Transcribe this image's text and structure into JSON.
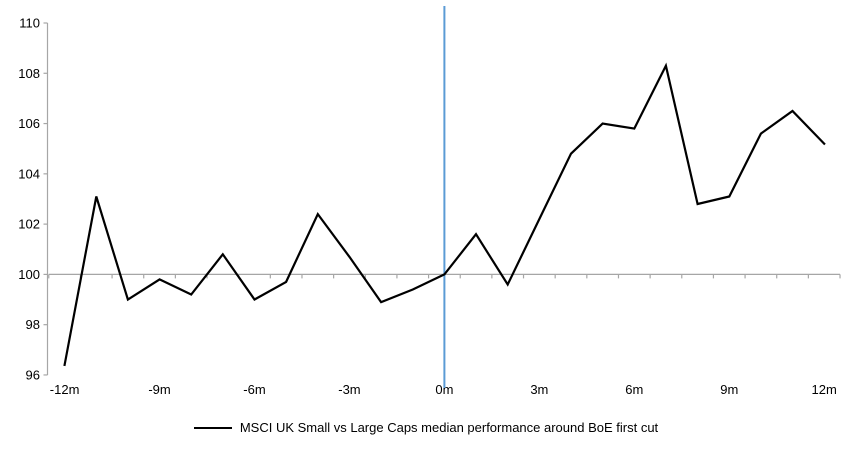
{
  "chart_data": {
    "type": "line",
    "title": "",
    "xlabel": "",
    "ylabel": "",
    "x_tick_labels": [
      "-12m",
      "-9m",
      "-6m",
      "-3m",
      "0m",
      "3m",
      "6m",
      "9m",
      "12m"
    ],
    "x_tick_values": [
      -12,
      -9,
      -6,
      -3,
      0,
      3,
      6,
      9,
      12
    ],
    "xlim": [
      -12.5,
      12.5
    ],
    "y_ticks": [
      96,
      98,
      100,
      102,
      104,
      106,
      108,
      110
    ],
    "ylim": [
      96,
      110
    ],
    "baseline_value": 100,
    "event_line_x": 0,
    "grid": "off",
    "legend_position": "bottom",
    "series": [
      {
        "name": "MSCI UK Small vs Large Caps median performance around BoE first cut",
        "x": [
          -12,
          -11,
          -10,
          -9,
          -8,
          -7,
          -6,
          -5,
          -4,
          -3,
          -2,
          -1,
          0,
          1,
          2,
          3,
          4,
          5,
          6,
          7,
          8,
          9,
          10,
          11,
          12
        ],
        "values": [
          96.4,
          103.1,
          99.0,
          99.8,
          99.2,
          100.8,
          99.0,
          99.7,
          102.4,
          100.7,
          98.9,
          99.4,
          100.0,
          101.6,
          99.6,
          102.2,
          104.8,
          106.0,
          105.8,
          108.3,
          102.8,
          103.1,
          105.6,
          106.5,
          105.2
        ]
      }
    ],
    "colors": {
      "series": "#000000",
      "event_line": "#5b9bd5",
      "axis": "#a6a6a6",
      "text": "#000000",
      "background": "#ffffff"
    }
  }
}
